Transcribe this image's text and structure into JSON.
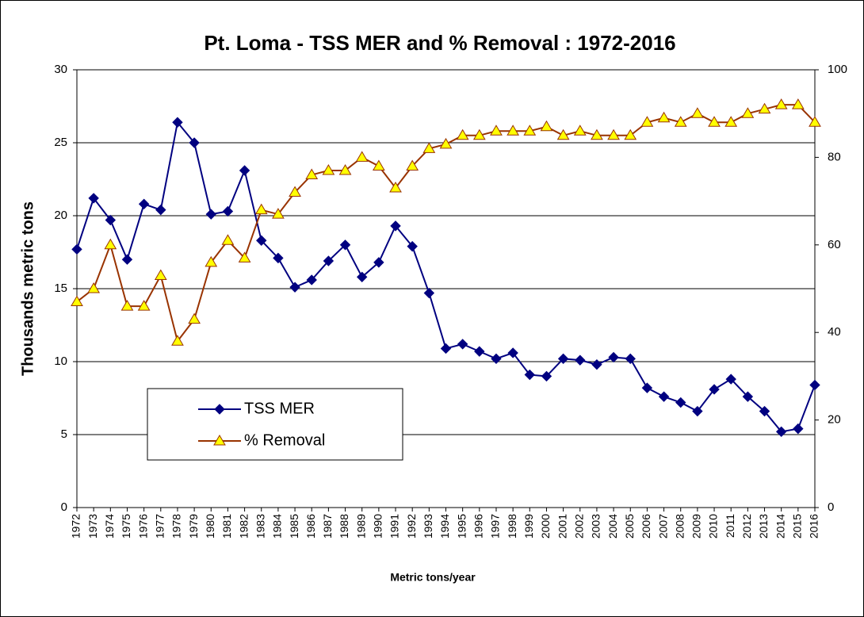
{
  "chart_data": {
    "type": "line",
    "title": "Pt. Loma - TSS MER and % Removal : 1972-2016",
    "y_label": "Thousands metric tons",
    "x_label": "Metric tons/year",
    "categories": [
      "1972",
      "1973",
      "1974",
      "1975",
      "1976",
      "1977",
      "1978",
      "1979",
      "1980",
      "1981",
      "1982",
      "1983",
      "1984",
      "1985",
      "1986",
      "1987",
      "1988",
      "1989",
      "1990",
      "1991",
      "1992",
      "1993",
      "1994",
      "1995",
      "1996",
      "1997",
      "1998",
      "1999",
      "2000",
      "2001",
      "2002",
      "2003",
      "2004",
      "2005",
      "2006",
      "2007",
      "2008",
      "2009",
      "2010",
      "2011",
      "2012",
      "2013",
      "2014",
      "2015",
      "2016"
    ],
    "series": [
      {
        "name": "TSS MER",
        "color": "#000080",
        "marker": "diamond",
        "values": [
          17.7,
          21.2,
          19.7,
          17.0,
          20.8,
          20.4,
          26.4,
          25.0,
          20.1,
          20.3,
          23.1,
          18.3,
          17.1,
          15.1,
          15.6,
          16.9,
          18.0,
          15.8,
          16.8,
          19.3,
          17.9,
          14.7,
          10.9,
          11.2,
          10.7,
          10.2,
          10.6,
          9.1,
          9.0,
          10.2,
          10.1,
          9.8,
          10.3,
          10.2,
          8.2,
          7.6,
          7.2,
          6.6,
          8.1,
          8.8,
          7.6,
          6.6,
          5.2,
          5.4,
          8.4
        ]
      },
      {
        "name": "% Removal",
        "color": "#993300",
        "marker_color": "#ffff00",
        "marker": "triangle",
        "axis": "y2",
        "values": [
          47,
          50,
          60,
          46,
          46,
          53,
          38,
          43,
          56,
          61,
          57,
          68,
          67,
          72,
          76,
          77,
          77,
          80,
          78,
          73,
          78,
          82,
          83,
          85,
          85,
          86,
          86,
          86,
          87,
          85,
          86,
          85,
          85,
          85,
          88,
          89,
          88,
          90,
          88,
          88,
          90,
          91,
          92,
          92,
          88
        ]
      }
    ],
    "ylim": [
      0,
      30
    ],
    "yticks": [
      0,
      5,
      10,
      15,
      20,
      25,
      30
    ],
    "y2lim": [
      0,
      100
    ],
    "y2ticks": [
      0,
      20,
      40,
      60,
      80,
      100
    ],
    "grid": true
  }
}
